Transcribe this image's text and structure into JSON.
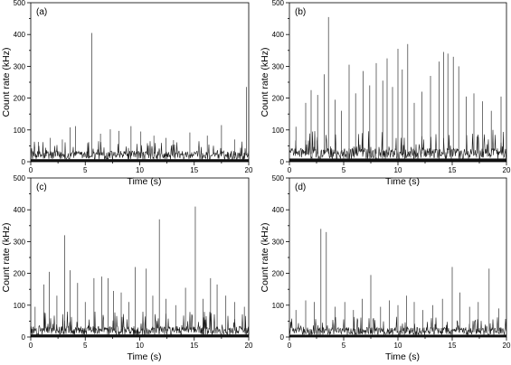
{
  "chart_data": [
    {
      "type": "line",
      "panel_label": "(a)",
      "xlabel": "Time (s)",
      "ylabel": "Count rate (kHz)",
      "xlim": [
        0,
        20
      ],
      "ylim": [
        0,
        500
      ],
      "xticks": [
        0,
        5,
        10,
        15,
        20
      ],
      "yticks": [
        0,
        100,
        200,
        300,
        400,
        500
      ],
      "baseline_kHz": 20,
      "background_max_kHz": 65,
      "peaks": [
        {
          "t": 0.7,
          "v": 62
        },
        {
          "t": 1.8,
          "v": 75
        },
        {
          "t": 2.9,
          "v": 70
        },
        {
          "t": 3.6,
          "v": 108
        },
        {
          "t": 4.1,
          "v": 112
        },
        {
          "t": 5.6,
          "v": 405
        },
        {
          "t": 6.4,
          "v": 88
        },
        {
          "t": 7.3,
          "v": 102
        },
        {
          "t": 8.1,
          "v": 97
        },
        {
          "t": 9.2,
          "v": 112
        },
        {
          "t": 10.1,
          "v": 95
        },
        {
          "t": 11.3,
          "v": 82
        },
        {
          "t": 12.4,
          "v": 75
        },
        {
          "t": 13.1,
          "v": 68
        },
        {
          "t": 14.6,
          "v": 92
        },
        {
          "t": 16.2,
          "v": 82
        },
        {
          "t": 17.5,
          "v": 115
        },
        {
          "t": 18.7,
          "v": 70
        },
        {
          "t": 19.8,
          "v": 235
        }
      ]
    },
    {
      "type": "line",
      "panel_label": "(b)",
      "xlabel": "Time (s)",
      "ylabel": "Count rate (kHz)",
      "xlim": [
        0,
        20
      ],
      "ylim": [
        0,
        500
      ],
      "xticks": [
        0,
        5,
        10,
        15,
        20
      ],
      "yticks": [
        0,
        100,
        200,
        300,
        400,
        500
      ],
      "baseline_kHz": 25,
      "background_max_kHz": 100,
      "peaks": [
        {
          "t": 0.6,
          "v": 110
        },
        {
          "t": 1.5,
          "v": 185
        },
        {
          "t": 2.0,
          "v": 225
        },
        {
          "t": 2.6,
          "v": 210
        },
        {
          "t": 3.2,
          "v": 275
        },
        {
          "t": 3.6,
          "v": 455
        },
        {
          "t": 4.2,
          "v": 195
        },
        {
          "t": 4.8,
          "v": 160
        },
        {
          "t": 5.5,
          "v": 305
        },
        {
          "t": 6.1,
          "v": 215
        },
        {
          "t": 6.8,
          "v": 285
        },
        {
          "t": 7.4,
          "v": 240
        },
        {
          "t": 8.0,
          "v": 310
        },
        {
          "t": 8.6,
          "v": 255
        },
        {
          "t": 9.0,
          "v": 325
        },
        {
          "t": 9.5,
          "v": 235
        },
        {
          "t": 10.0,
          "v": 355
        },
        {
          "t": 10.4,
          "v": 290
        },
        {
          "t": 10.9,
          "v": 370
        },
        {
          "t": 11.5,
          "v": 185
        },
        {
          "t": 12.2,
          "v": 220
        },
        {
          "t": 13.0,
          "v": 270
        },
        {
          "t": 13.8,
          "v": 315
        },
        {
          "t": 14.2,
          "v": 345
        },
        {
          "t": 14.6,
          "v": 340
        },
        {
          "t": 15.1,
          "v": 330
        },
        {
          "t": 15.6,
          "v": 300
        },
        {
          "t": 16.3,
          "v": 205
        },
        {
          "t": 17.0,
          "v": 215
        },
        {
          "t": 17.8,
          "v": 190
        },
        {
          "t": 18.6,
          "v": 160
        },
        {
          "t": 19.5,
          "v": 205
        }
      ]
    },
    {
      "type": "line",
      "panel_label": "(c)",
      "xlabel": "Time (s)",
      "ylabel": "Count rate (kHz)",
      "xlim": [
        0,
        20
      ],
      "ylim": [
        0,
        500
      ],
      "xticks": [
        0,
        5,
        10,
        15,
        20
      ],
      "yticks": [
        0,
        100,
        200,
        300,
        400,
        500
      ],
      "baseline_kHz": 20,
      "background_max_kHz": 80,
      "peaks": [
        {
          "t": 0.4,
          "v": 95
        },
        {
          "t": 1.2,
          "v": 165
        },
        {
          "t": 1.7,
          "v": 205
        },
        {
          "t": 2.4,
          "v": 130
        },
        {
          "t": 3.1,
          "v": 320
        },
        {
          "t": 3.6,
          "v": 210
        },
        {
          "t": 4.3,
          "v": 170
        },
        {
          "t": 5.0,
          "v": 110
        },
        {
          "t": 5.8,
          "v": 185
        },
        {
          "t": 6.5,
          "v": 190
        },
        {
          "t": 7.1,
          "v": 185
        },
        {
          "t": 7.6,
          "v": 145
        },
        {
          "t": 8.3,
          "v": 140
        },
        {
          "t": 9.0,
          "v": 110
        },
        {
          "t": 9.6,
          "v": 220
        },
        {
          "t": 10.6,
          "v": 215
        },
        {
          "t": 11.2,
          "v": 130
        },
        {
          "t": 11.8,
          "v": 370
        },
        {
          "t": 12.4,
          "v": 120
        },
        {
          "t": 13.3,
          "v": 100
        },
        {
          "t": 14.2,
          "v": 155
        },
        {
          "t": 15.1,
          "v": 410
        },
        {
          "t": 15.8,
          "v": 120
        },
        {
          "t": 16.5,
          "v": 185
        },
        {
          "t": 17.1,
          "v": 165
        },
        {
          "t": 17.9,
          "v": 130
        },
        {
          "t": 18.7,
          "v": 110
        },
        {
          "t": 19.6,
          "v": 95
        }
      ]
    },
    {
      "type": "line",
      "panel_label": "(d)",
      "xlabel": "Time (s)",
      "ylabel": "Count rate (kHz)",
      "xlim": [
        0,
        20
      ],
      "ylim": [
        0,
        500
      ],
      "xticks": [
        0,
        5,
        10,
        15,
        20
      ],
      "yticks": [
        0,
        100,
        200,
        300,
        400,
        500
      ],
      "baseline_kHz": 18,
      "background_max_kHz": 65,
      "peaks": [
        {
          "t": 0.6,
          "v": 85
        },
        {
          "t": 1.5,
          "v": 115
        },
        {
          "t": 2.3,
          "v": 110
        },
        {
          "t": 2.9,
          "v": 340
        },
        {
          "t": 3.4,
          "v": 330
        },
        {
          "t": 4.2,
          "v": 95
        },
        {
          "t": 5.1,
          "v": 110
        },
        {
          "t": 5.9,
          "v": 85
        },
        {
          "t": 6.7,
          "v": 120
        },
        {
          "t": 7.5,
          "v": 195
        },
        {
          "t": 8.4,
          "v": 95
        },
        {
          "t": 9.2,
          "v": 115
        },
        {
          "t": 10.0,
          "v": 100
        },
        {
          "t": 10.8,
          "v": 130
        },
        {
          "t": 11.5,
          "v": 110
        },
        {
          "t": 12.3,
          "v": 85
        },
        {
          "t": 13.2,
          "v": 100
        },
        {
          "t": 14.1,
          "v": 120
        },
        {
          "t": 15.0,
          "v": 220
        },
        {
          "t": 15.7,
          "v": 140
        },
        {
          "t": 16.6,
          "v": 95
        },
        {
          "t": 17.4,
          "v": 110
        },
        {
          "t": 18.4,
          "v": 215
        },
        {
          "t": 19.3,
          "v": 90
        }
      ]
    }
  ]
}
